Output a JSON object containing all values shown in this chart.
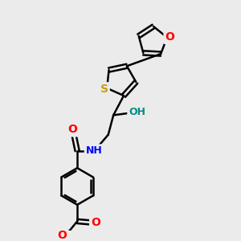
{
  "background_color": "#ebebeb",
  "bond_color": "#000000",
  "bond_width": 1.8,
  "atom_colors": {
    "S": "#c8a000",
    "O": "#ff0000",
    "N": "#0000ff",
    "OH": "#008b8b",
    "C": "#000000"
  },
  "font_size": 9,
  "fig_size": [
    3.0,
    3.0
  ],
  "dpi": 100
}
